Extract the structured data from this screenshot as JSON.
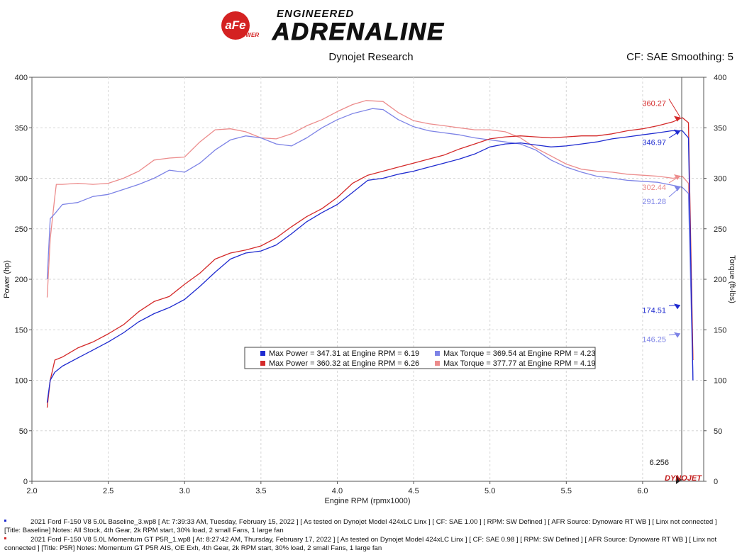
{
  "header": {
    "brand_top": "ENGINEERED",
    "brand_main": "ADRENALINE",
    "logo_text": "aFe",
    "logo_sub": "POWER",
    "subtitle": "Dynojet Research",
    "cf_text": "CF: SAE Smoothing: 5"
  },
  "colors": {
    "baseline_power": "#1f2bd0",
    "baseline_torque": "#7d83e6",
    "mod_power": "#d42a2a",
    "mod_torque": "#ec8c8c",
    "cursor": "#555555"
  },
  "chart_data": {
    "type": "line",
    "xlabel": "Engine RPM (rpmx1000)",
    "ylabel": "Power (hp)",
    "y2label": "Torque (ft-lbs)",
    "xlim": [
      2.0,
      6.4
    ],
    "ylim": [
      0,
      400
    ],
    "y2lim": [
      0,
      400
    ],
    "x_ticks": [
      "2.0",
      "2.5",
      "3.0",
      "3.5",
      "4.0",
      "4.5",
      "5.0",
      "5.5",
      "6.0"
    ],
    "y_ticks": [
      "0",
      "50",
      "100",
      "150",
      "200",
      "250",
      "300",
      "350",
      "400"
    ],
    "series": [
      {
        "key": "mod_torque",
        "x": [
          2.1,
          2.12,
          2.15,
          2.16,
          2.2,
          2.3,
          2.4,
          2.5,
          2.6,
          2.7,
          2.8,
          2.9,
          3.0,
          3.1,
          3.2,
          3.3,
          3.4,
          3.5,
          3.6,
          3.7,
          3.8,
          3.9,
          4.0,
          4.1,
          4.19,
          4.3,
          4.4,
          4.5,
          4.6,
          4.7,
          4.8,
          4.9,
          5.0,
          5.1,
          5.2,
          5.3,
          5.4,
          5.5,
          5.6,
          5.7,
          5.8,
          5.9,
          6.0,
          6.1,
          6.2,
          6.26,
          6.3,
          6.33
        ],
        "y": [
          182,
          240,
          282,
          294,
          294,
          295,
          294,
          295,
          300,
          307,
          318,
          320,
          321,
          336,
          348,
          349,
          346,
          340,
          339,
          344,
          352,
          358,
          366,
          373,
          377,
          376,
          365,
          357,
          354,
          352,
          350,
          348,
          348,
          346,
          340,
          330,
          322,
          314,
          309,
          307,
          306,
          304,
          303,
          302,
          300,
          302,
          295,
          120
        ]
      },
      {
        "key": "baseline_torque",
        "x": [
          2.1,
          2.12,
          2.15,
          2.2,
          2.3,
          2.4,
          2.5,
          2.6,
          2.7,
          2.8,
          2.9,
          3.0,
          3.1,
          3.2,
          3.3,
          3.4,
          3.5,
          3.6,
          3.7,
          3.8,
          3.9,
          4.0,
          4.1,
          4.23,
          4.3,
          4.4,
          4.5,
          4.6,
          4.7,
          4.8,
          4.9,
          5.0,
          5.1,
          5.2,
          5.3,
          5.4,
          5.5,
          5.6,
          5.7,
          5.8,
          5.9,
          6.0,
          6.1,
          6.2,
          6.26,
          6.3,
          6.33
        ],
        "y": [
          200,
          260,
          265,
          274,
          276,
          282,
          284,
          289,
          294,
          300,
          308,
          306,
          315,
          328,
          338,
          342,
          340,
          334,
          332,
          340,
          350,
          358,
          364,
          369,
          368,
          358,
          351,
          347,
          345,
          343,
          340,
          338,
          336,
          334,
          328,
          318,
          311,
          306,
          302,
          300,
          298,
          297,
          296,
          293,
          291,
          285,
          100
        ]
      },
      {
        "key": "mod_power",
        "x": [
          2.1,
          2.12,
          2.15,
          2.2,
          2.3,
          2.4,
          2.5,
          2.6,
          2.7,
          2.8,
          2.9,
          3.0,
          3.1,
          3.2,
          3.3,
          3.4,
          3.5,
          3.6,
          3.7,
          3.8,
          3.9,
          4.0,
          4.1,
          4.2,
          4.3,
          4.4,
          4.5,
          4.6,
          4.7,
          4.8,
          4.9,
          5.0,
          5.1,
          5.2,
          5.3,
          5.4,
          5.5,
          5.6,
          5.7,
          5.8,
          5.9,
          6.0,
          6.1,
          6.2,
          6.26,
          6.3,
          6.33
        ],
        "y": [
          73,
          100,
          120,
          123,
          132,
          138,
          146,
          155,
          168,
          178,
          183,
          195,
          206,
          220,
          226,
          229,
          233,
          241,
          252,
          262,
          270,
          281,
          295,
          303,
          307,
          311,
          315,
          319,
          323,
          329,
          334,
          339,
          341,
          342,
          341,
          340,
          341,
          342,
          342,
          344,
          347,
          349,
          352,
          356,
          360,
          355,
          120
        ]
      },
      {
        "key": "baseline_power",
        "x": [
          2.1,
          2.12,
          2.15,
          2.2,
          2.3,
          2.4,
          2.5,
          2.6,
          2.7,
          2.8,
          2.9,
          3.0,
          3.1,
          3.2,
          3.3,
          3.4,
          3.5,
          3.6,
          3.7,
          3.8,
          3.9,
          4.0,
          4.1,
          4.2,
          4.3,
          4.4,
          4.5,
          4.6,
          4.7,
          4.8,
          4.9,
          5.0,
          5.1,
          5.2,
          5.3,
          5.4,
          5.5,
          5.6,
          5.7,
          5.8,
          5.9,
          6.0,
          6.1,
          6.19,
          6.26,
          6.3,
          6.33
        ],
        "y": [
          78,
          100,
          108,
          114,
          122,
          130,
          138,
          147,
          158,
          166,
          172,
          180,
          193,
          207,
          220,
          226,
          228,
          234,
          245,
          257,
          266,
          274,
          286,
          298,
          300,
          304,
          307,
          311,
          315,
          319,
          324,
          331,
          334,
          335,
          333,
          331,
          332,
          334,
          336,
          339,
          341,
          343,
          345,
          347,
          347,
          340,
          100
        ]
      }
    ],
    "legend": [
      {
        "key": "baseline_power",
        "text": "Max Power = 347.31 at Engine RPM = 6.19"
      },
      {
        "key": "baseline_torque",
        "text": "Max Torque = 369.54 at Engine RPM = 4.23"
      },
      {
        "key": "mod_power",
        "text": "Max Power = 360.32 at Engine RPM = 6.26"
      },
      {
        "key": "mod_torque",
        "text": "Max Torque = 377.77 at Engine RPM = 4.19"
      }
    ],
    "cursor_rpm": 6.256,
    "cursor_label": "6.256",
    "callouts": [
      {
        "key": "mod_power",
        "text": "360.27",
        "value": 360.27
      },
      {
        "key": "baseline_power",
        "text": "346.97",
        "value": 346.97
      },
      {
        "key": "mod_torque",
        "text": "302.44",
        "value": 302.44
      },
      {
        "key": "baseline_torque",
        "text": "291.28",
        "value": 291.28
      },
      {
        "key": "baseline_power",
        "text": "174.51",
        "value": 174.51
      },
      {
        "key": "baseline_torque",
        "text": "146.25",
        "value": 146.25
      }
    ],
    "dyno_logo": "DYNOJET"
  },
  "footer": [
    {
      "key": "baseline_power",
      "line1": "2021 Ford F-150 V8 5.0L Baseline_3.wp8 [ At: 7:39:33 AM, Tuesday, February 15, 2022 ] [ As tested on Dynojet Model 424xLC Linx ] [ CF: SAE 1.00 ] [ RPM: SW Defined ] [ AFR Source: Dynoware RT WB ] [ Linx not connected ]",
      "line2": "[Title: Baseline]  Notes: All Stock, 4th Gear, 2k RPM start, 30% load, 2 small Fans, 1 large fan"
    },
    {
      "key": "mod_power",
      "line1": "2021 Ford F-150 V8 5.0L Momentum GT P5R_1.wp8 [ At: 8:27:42 AM, Thursday, February 17, 2022 ] [ As tested on Dynojet Model 424xLC Linx ] [ CF: SAE 0.98 ] [ RPM: SW Defined ] [ AFR Source: Dynoware RT WB ] [ Linx not",
      "line2": "connected ] [Title: P5R]  Notes:  Momentum GT P5R AIS, OE Exh, 4th Gear, 2k RPM start, 30% load, 2 small Fans, 1 large fan"
    }
  ]
}
